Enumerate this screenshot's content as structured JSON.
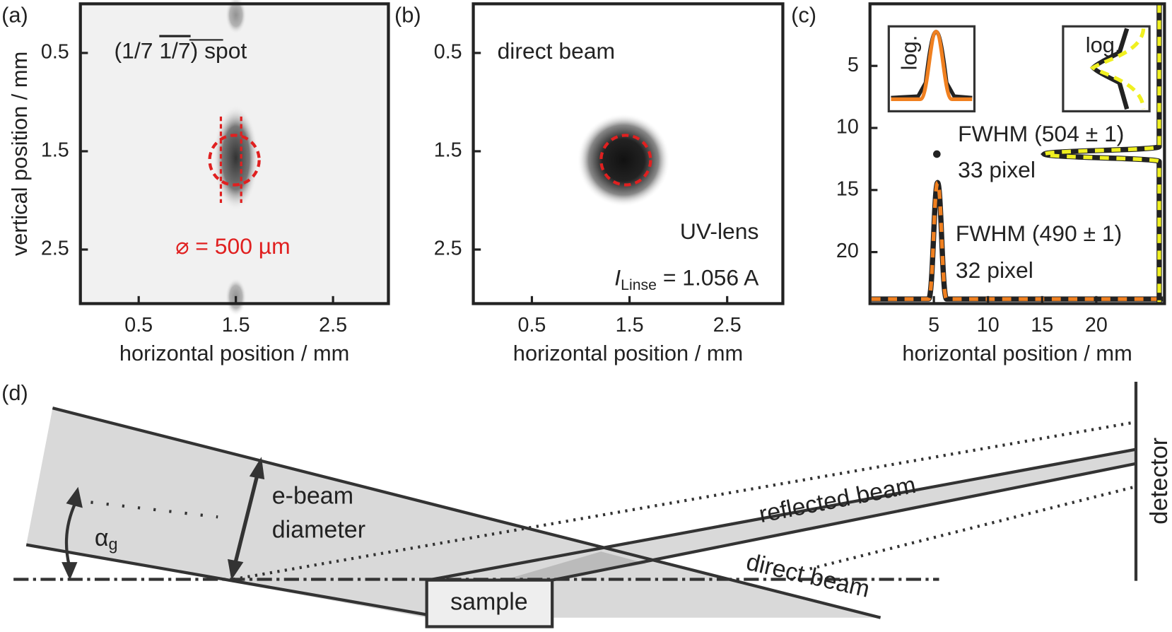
{
  "panels": [
    {
      "label": "(a)",
      "xlabel": "horizontal position / mm",
      "ylabel": "vertical position / mm",
      "xlim": [
        -0.1,
        3.07
      ],
      "ylim": [
        0,
        3.05
      ],
      "xticks": [
        0.5,
        1.5,
        2.5
      ],
      "yticks": [
        0.5,
        1.5,
        2.5
      ],
      "spot": [
        "(1/7 ",
        "1/7",
        ") spot"
      ],
      "diameter": "⌀ = 500 µm"
    },
    {
      "label": "(b)",
      "xlabel": "horizontal position / mm",
      "xlim": [
        -0.1,
        3.07
      ],
      "ylim": [
        0,
        3.05
      ],
      "xticks": [
        0.5,
        1.5,
        2.5
      ],
      "yticks": [
        0.5,
        1.5,
        2.5
      ],
      "title": "direct beam",
      "lens": "UV-lens",
      "current": [
        "I",
        "Linse",
        " = 1.056 A"
      ]
    },
    {
      "label": "(c)",
      "xlabel": "horizontal position / mm",
      "xlim": [
        -0.9,
        26.3
      ],
      "ylim": [
        0,
        24.15
      ],
      "xticks": [
        5,
        10,
        15,
        20
      ],
      "yticks": [
        5,
        10,
        15,
        20
      ],
      "insets": [
        "log.",
        "log."
      ],
      "fwhm1": "FWHM (504 ± 1)",
      "pix1": "33 pixel",
      "fwhm2": "FWHM (490 ± 1)",
      "pix2": "32 pixel"
    }
  ],
  "diagram": {
    "label": "(d)",
    "beam": [
      "e-beam",
      "diameter"
    ],
    "angle": [
      "α",
      "g"
    ],
    "sample": "sample",
    "reflected": "reflected beam",
    "direct": "direct beam",
    "detector": "detector"
  }
}
